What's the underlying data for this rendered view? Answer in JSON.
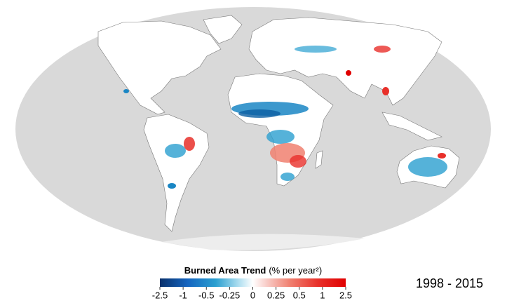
{
  "legend": {
    "title": "Burned Area Trend",
    "unit": "(% per year²)",
    "ticks": [
      -2.5,
      -1,
      -0.5,
      -0.25,
      0,
      0.25,
      0.5,
      1,
      2.5
    ]
  },
  "period": "1998 - 2015"
}
